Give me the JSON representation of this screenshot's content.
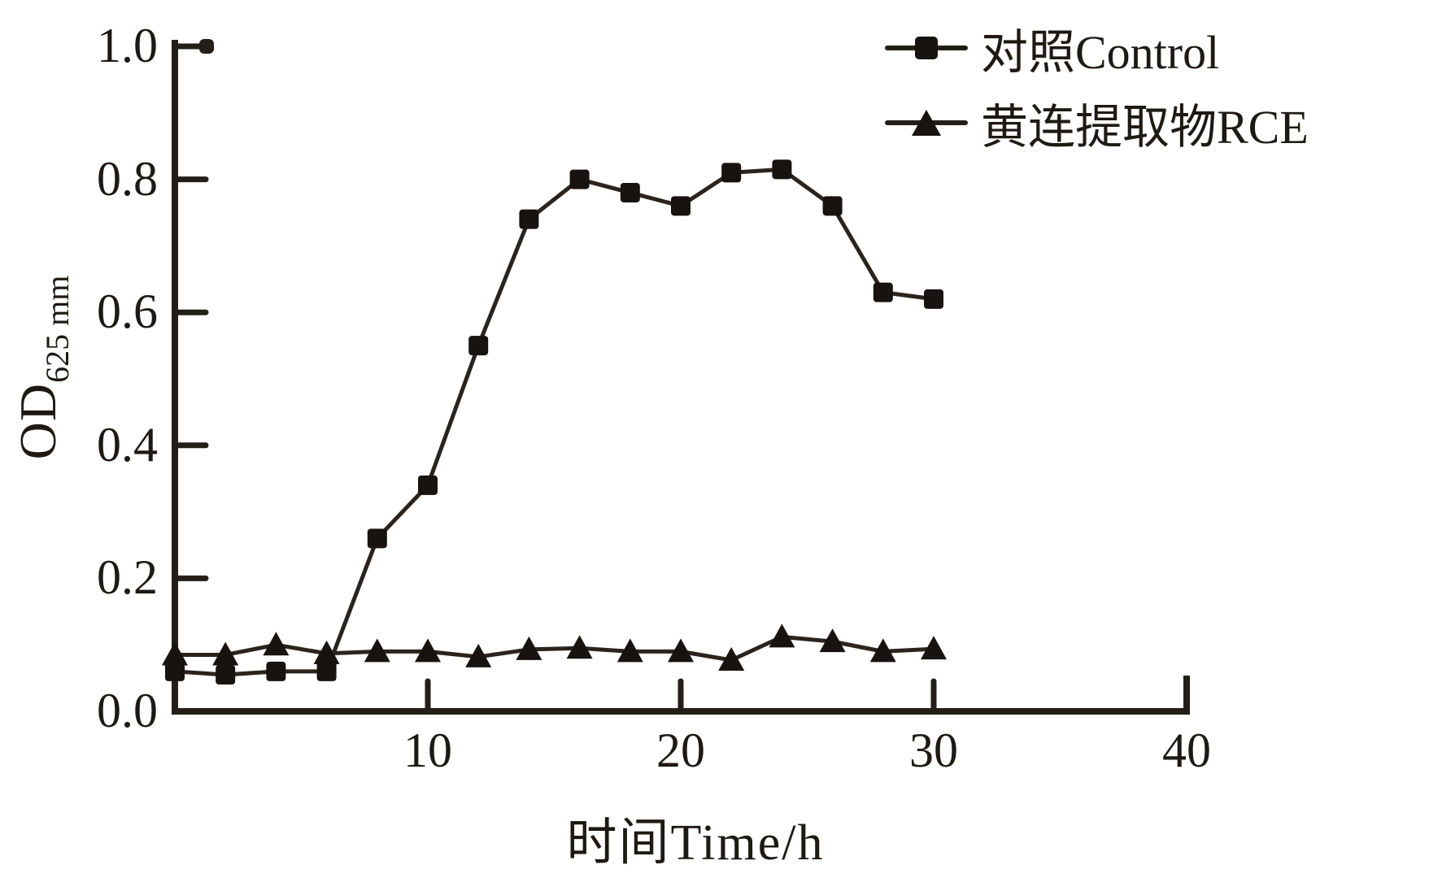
{
  "figure": {
    "background": "#ffffff",
    "ink_color": "#241e19",
    "marker_color": "#181310",
    "line_color": "#2a231e"
  },
  "chart_data": {
    "type": "line",
    "title": "",
    "xlabel": "时间Time/h",
    "ylabel": "OD",
    "ylabel_subscript": "625 mm",
    "xlim": [
      0,
      40
    ],
    "ylim": [
      0.0,
      1.0
    ],
    "x_ticks": [
      10,
      20,
      30,
      40
    ],
    "y_ticks": [
      0.0,
      0.2,
      0.4,
      0.6,
      0.8,
      1.0
    ],
    "grid": false,
    "legend_position": "top-right",
    "x": [
      0,
      2,
      4,
      6,
      8,
      10,
      12,
      14,
      16,
      18,
      20,
      22,
      24,
      26,
      28,
      30
    ],
    "series": [
      {
        "name": "对照Control",
        "marker": "square",
        "values": [
          0.06,
          0.055,
          0.06,
          0.06,
          0.26,
          0.34,
          0.55,
          0.74,
          0.8,
          0.78,
          0.76,
          0.81,
          0.815,
          0.76,
          0.63,
          0.62
        ]
      },
      {
        "name": "黄连提取物RCE",
        "marker": "triangle",
        "values": [
          0.085,
          0.085,
          0.1,
          0.087,
          0.09,
          0.09,
          0.082,
          0.093,
          0.095,
          0.09,
          0.09,
          0.077,
          0.112,
          0.105,
          0.09,
          0.094
        ]
      }
    ]
  }
}
